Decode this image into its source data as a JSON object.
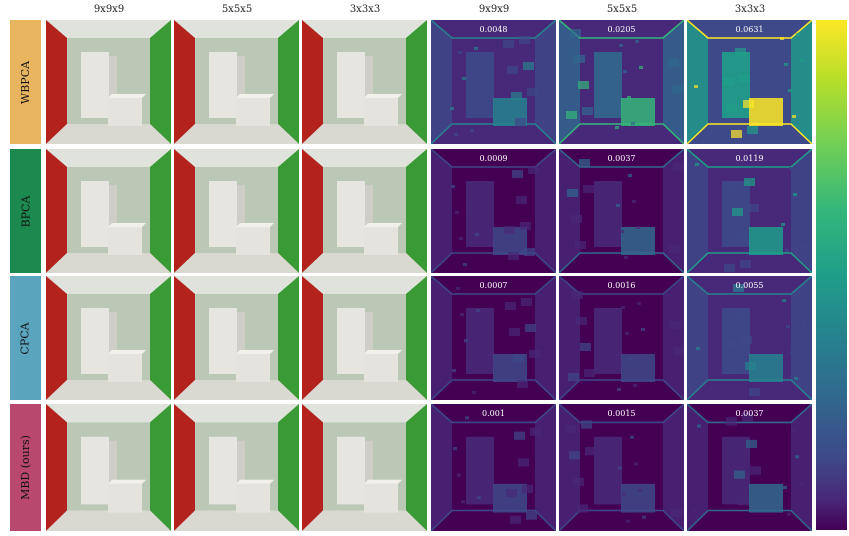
{
  "column_headers": [
    "9x9x9",
    "5x5x5",
    "3x3x3",
    "9x9x9",
    "5x5x5",
    "3x3x3"
  ],
  "rows": [
    {
      "method": "WBPCA",
      "color": "#e8b460",
      "errors": [
        "0.0048",
        "0.0205",
        "0.0631"
      ],
      "error_levels": [
        0.25,
        0.55,
        0.9
      ]
    },
    {
      "method": "BPCA",
      "color": "#1c8a4e",
      "errors": [
        "0.0009",
        "0.0037",
        "0.0119"
      ],
      "error_levels": [
        0.05,
        0.2,
        0.4
      ]
    },
    {
      "method": "CPCA",
      "color": "#5aa4be",
      "errors": [
        "0.0007",
        "0.0016",
        "0.0055"
      ],
      "error_levels": [
        0.03,
        0.12,
        0.25
      ]
    },
    {
      "method": "MBD (ours)",
      "color": "#b8486e",
      "errors": [
        "0.001",
        "0.0015",
        "0.0037"
      ],
      "error_levels": [
        0.05,
        0.12,
        0.2
      ]
    }
  ],
  "colorbar": {
    "colormap": "viridis",
    "top_color": "#fde725",
    "bottom_color": "#440154"
  }
}
